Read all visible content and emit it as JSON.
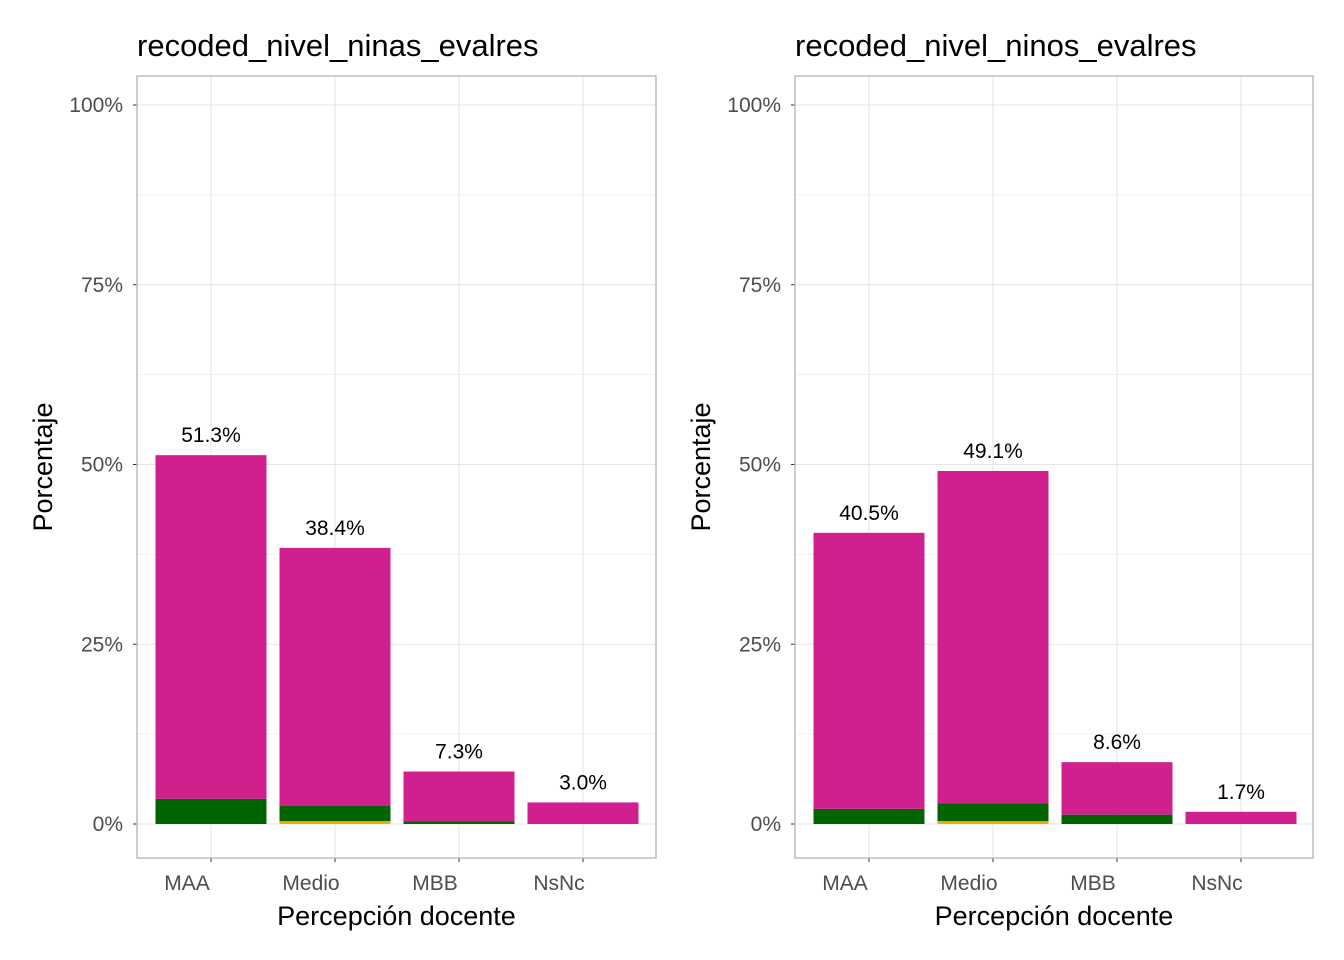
{
  "colors": {
    "pink": "#D0208E",
    "green": "#006400",
    "orange": "#FFA500",
    "grid": "#E5E5E5",
    "border": "#B3B3B3"
  },
  "chart_data": [
    {
      "type": "bar",
      "stacked": true,
      "title": "recoded_nivel_ninas_evalres",
      "xlabel": "Percepción docente",
      "ylabel": "Porcentaje",
      "ylim": [
        0,
        100
      ],
      "yticks": [
        "0%",
        "25%",
        "50%",
        "75%",
        "100%"
      ],
      "categories": [
        "MAA",
        "Medio",
        "MBB",
        "NsNc"
      ],
      "totals": [
        51.3,
        38.4,
        7.3,
        3.0
      ],
      "labels": [
        "51.3%",
        "38.4%",
        "7.3%",
        "3.0%"
      ],
      "series": [
        {
          "name": "orange",
          "color": "#FFA500",
          "values": [
            0,
            0.4,
            0,
            0
          ]
        },
        {
          "name": "green",
          "color": "#006400",
          "values": [
            3.5,
            2.1,
            0.4,
            0
          ]
        },
        {
          "name": "pink",
          "color": "#D0208E",
          "values": [
            47.8,
            35.9,
            6.9,
            3.0
          ]
        }
      ]
    },
    {
      "type": "bar",
      "stacked": true,
      "title": "recoded_nivel_ninos_evalres",
      "xlabel": "Percepción docente",
      "ylabel": "Porcentaje",
      "ylim": [
        0,
        100
      ],
      "yticks": [
        "0%",
        "25%",
        "50%",
        "75%",
        "100%"
      ],
      "categories": [
        "MAA",
        "Medio",
        "MBB",
        "NsNc"
      ],
      "totals": [
        40.5,
        49.1,
        8.6,
        1.7
      ],
      "labels": [
        "40.5%",
        "49.1%",
        "8.6%",
        "1.7%"
      ],
      "series": [
        {
          "name": "orange",
          "color": "#FFA500",
          "values": [
            0,
            0.4,
            0,
            0
          ]
        },
        {
          "name": "green",
          "color": "#006400",
          "values": [
            2.1,
            2.5,
            1.3,
            0
          ]
        },
        {
          "name": "pink",
          "color": "#D0208E",
          "values": [
            38.4,
            46.2,
            7.3,
            1.7
          ]
        }
      ]
    }
  ]
}
